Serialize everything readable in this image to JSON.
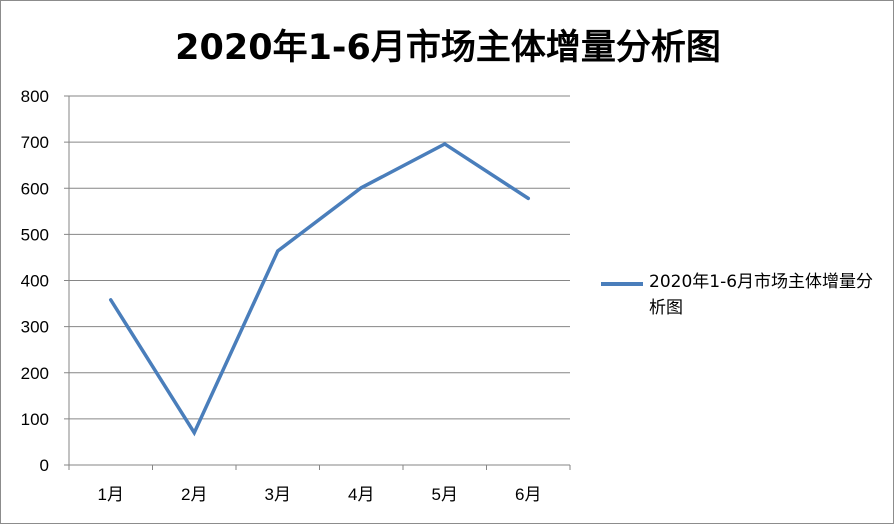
{
  "chart_data": {
    "type": "line",
    "title": "2020年1-6月市场主体增量分析图",
    "categories": [
      "1月",
      "2月",
      "3月",
      "4月",
      "5月",
      "6月"
    ],
    "series": [
      {
        "name": "2020年1-6月市场主体增量分析图",
        "color": "#4a7ebb",
        "values": [
          358,
          70,
          464,
          601,
          696,
          578
        ]
      }
    ],
    "ylim": [
      0,
      800
    ],
    "yticks": [
      "0",
      "100",
      "200",
      "300",
      "400",
      "500",
      "600",
      "700",
      "800"
    ],
    "grid": true,
    "legend": "right",
    "xlabel": "",
    "ylabel": ""
  }
}
